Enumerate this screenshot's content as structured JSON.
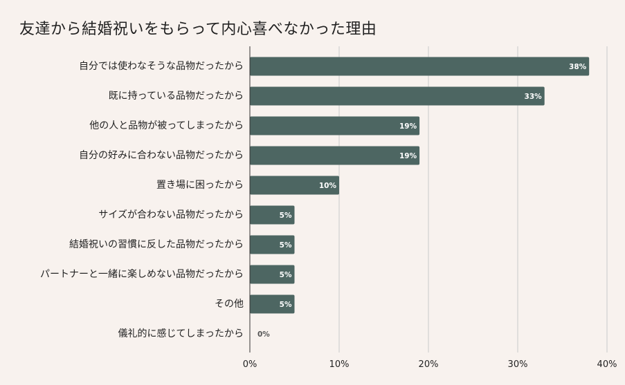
{
  "chart_data": {
    "type": "bar",
    "orientation": "horizontal",
    "title": "友達から結婚祝いをもらって内心喜べなかった理由",
    "categories": [
      "自分では使わなそうな品物だったから",
      "既に持っている品物だったから",
      "他の人と品物が被ってしまったから",
      "自分の好みに合わない品物だったから",
      "置き場に困ったから",
      "サイズが合わない品物だったから",
      "結婚祝いの習慣に反した品物だったから",
      "パートナーと一緒に楽しめない品物だったから",
      "その他",
      "儀礼的に感じてしまったから"
    ],
    "values": [
      38,
      33,
      19,
      19,
      10,
      5,
      5,
      5,
      5,
      0
    ],
    "value_labels": [
      "38%",
      "33%",
      "19%",
      "19%",
      "10%",
      "5%",
      "5%",
      "5%",
      "5%",
      "0%"
    ],
    "xlim": [
      0,
      40
    ],
    "xticks": [
      0,
      10,
      20,
      30,
      40
    ],
    "xtick_labels": [
      "0%",
      "10%",
      "20%",
      "30%",
      "40%"
    ],
    "grid": "vertical",
    "bar_color": "#4d6662",
    "background_color": "#f8f2ee"
  }
}
